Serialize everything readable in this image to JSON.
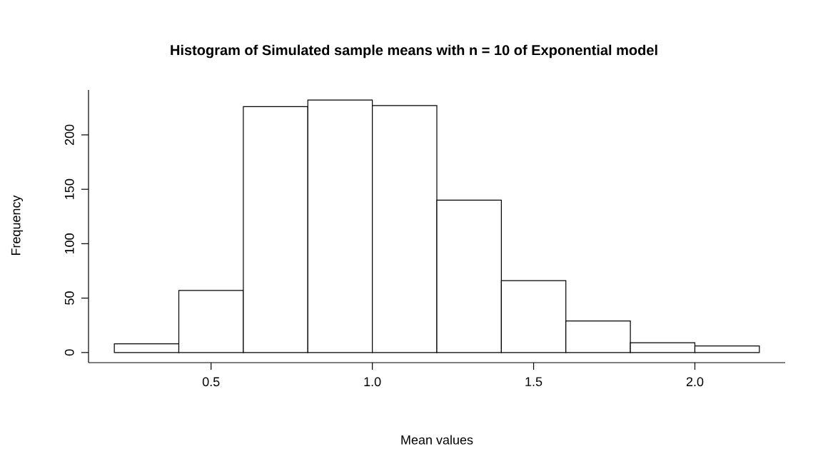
{
  "chart_data": {
    "type": "histogram",
    "title": "Histogram of Simulated sample means with n = 10 of Exponential model",
    "xlabel": "Mean values",
    "ylabel": "Frequency",
    "bins": [
      0.2,
      0.4,
      0.6,
      0.8,
      1.0,
      1.2,
      1.4,
      1.6,
      1.8,
      2.0,
      2.2
    ],
    "values": [
      8,
      57,
      226,
      232,
      227,
      140,
      66,
      29,
      9,
      6
    ],
    "color": "#ffffff",
    "xlim": [
      0.12,
      2.28
    ],
    "ylim": [
      -9.3,
      241.3
    ],
    "xticks": [
      0.5,
      {
        "value": 1.0,
        "label": "1.0"
      },
      1.5,
      {
        "value": 2.0,
        "label": "2.0"
      }
    ],
    "yticks": [
      0,
      50,
      100,
      150,
      200
    ]
  }
}
